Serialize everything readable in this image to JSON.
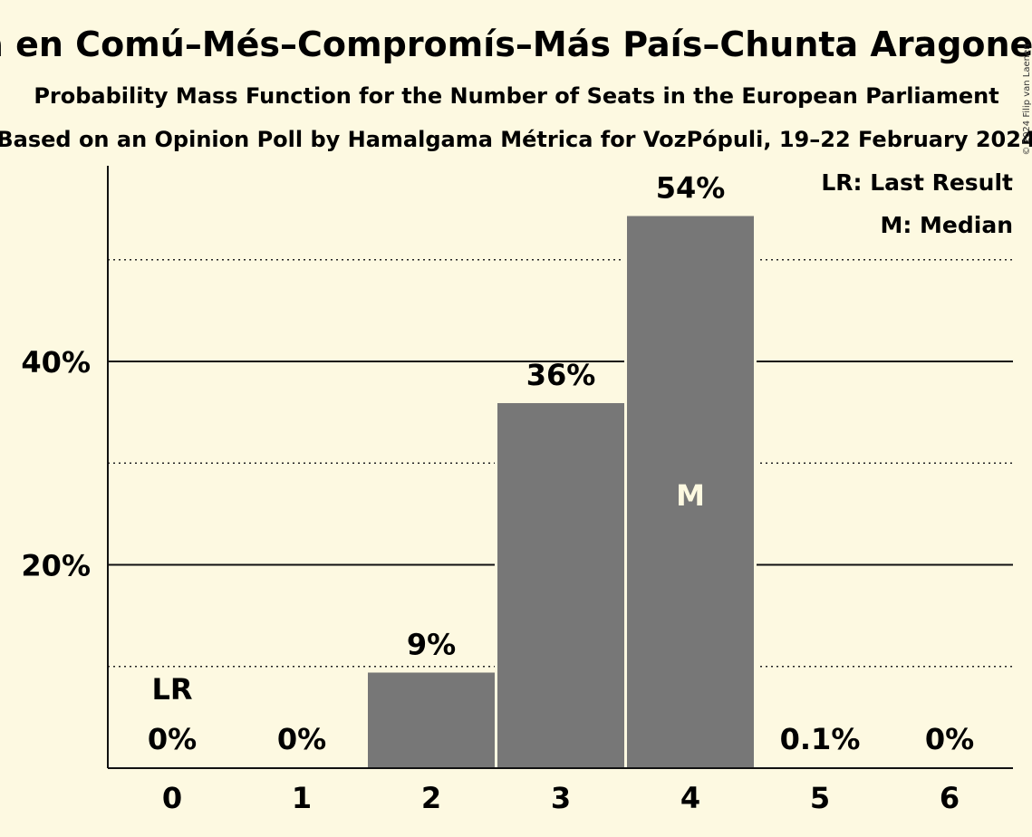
{
  "chart_data": {
    "type": "bar",
    "title": "Sumar–Catalunya en Comú–Més–Compromís–Más País–Chunta Aragonesista–Verdes Equo",
    "subtitle1": "Probability Mass Function for the Number of Seats in the European Parliament",
    "subtitle2": "Based on an Opinion Poll by Hamalgama Métrica for VozPópuli, 19–22 February 2024",
    "categories": [
      "0",
      "1",
      "2",
      "3",
      "4",
      "5",
      "6"
    ],
    "values": [
      0,
      0,
      9.4,
      35.9,
      54.3,
      0.1,
      0
    ],
    "value_labels": [
      "0%",
      "0%",
      "9%",
      "36%",
      "54%",
      "0.1%",
      "0%"
    ],
    "ylim": [
      0,
      59
    ],
    "yticks": [
      {
        "value": 20,
        "label": "20%"
      },
      {
        "value": 40,
        "label": "40%"
      }
    ],
    "minor_gridlines": [
      10,
      30,
      50
    ],
    "last_result_index": 0,
    "last_result_marker": "LR",
    "median_index": 4,
    "median_marker": "M",
    "legend": {
      "position": "top-right",
      "entries": [
        "LR: Last Result",
        "M: Median"
      ]
    },
    "bar_color": "#777777",
    "background_color": "#fdf9e1"
  },
  "copyright": "© 2024 Filip van Laenen"
}
